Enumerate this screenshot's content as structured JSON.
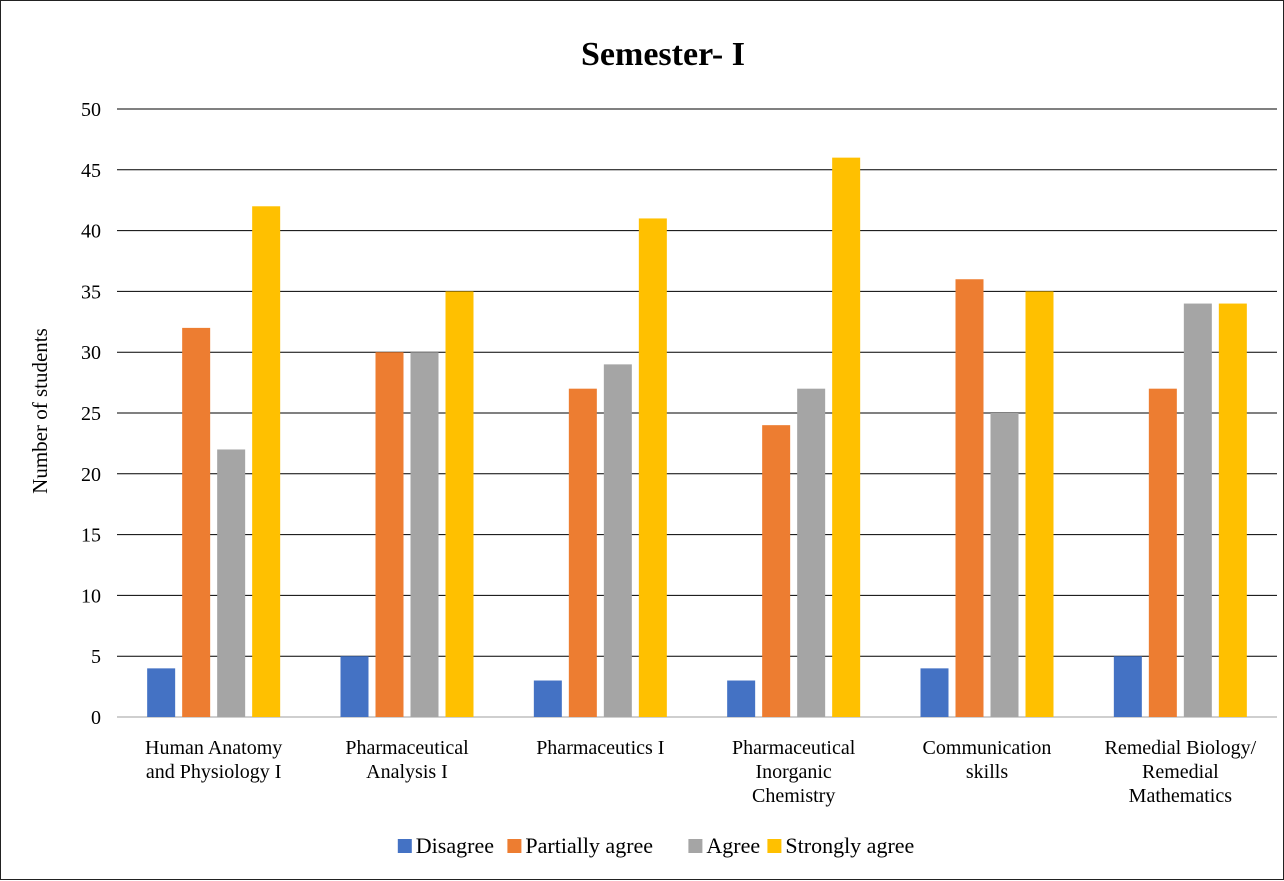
{
  "chart_data": {
    "type": "bar",
    "title": "Semester- I",
    "xlabel": "",
    "ylabel": "Number of students",
    "ylim": [
      0,
      50
    ],
    "yticks": [
      0,
      5,
      10,
      15,
      20,
      25,
      30,
      35,
      40,
      45,
      50
    ],
    "grid": true,
    "legend_position": "bottom",
    "categories": [
      [
        "Human Anatomy",
        "and Physiology I"
      ],
      [
        "Pharmaceutical",
        "Analysis I"
      ],
      [
        "Pharmaceutics I"
      ],
      [
        "Pharmaceutical",
        "Inorganic",
        "Chemistry"
      ],
      [
        "Communication",
        "skills"
      ],
      [
        "Remedial Biology/",
        "Remedial",
        "Mathematics"
      ]
    ],
    "series": [
      {
        "name": "Disagree",
        "color": "#4472C4",
        "values": [
          4,
          5,
          3,
          3,
          4,
          5
        ]
      },
      {
        "name": "Partially agree",
        "color": "#ED7D31",
        "values": [
          32,
          30,
          27,
          24,
          36,
          27
        ]
      },
      {
        "name": "Agree",
        "color": "#A5A5A5",
        "values": [
          22,
          30,
          29,
          27,
          25,
          34
        ]
      },
      {
        "name": "Strongly agree",
        "color": "#FFC000",
        "values": [
          42,
          35,
          41,
          46,
          35,
          34
        ]
      }
    ]
  }
}
